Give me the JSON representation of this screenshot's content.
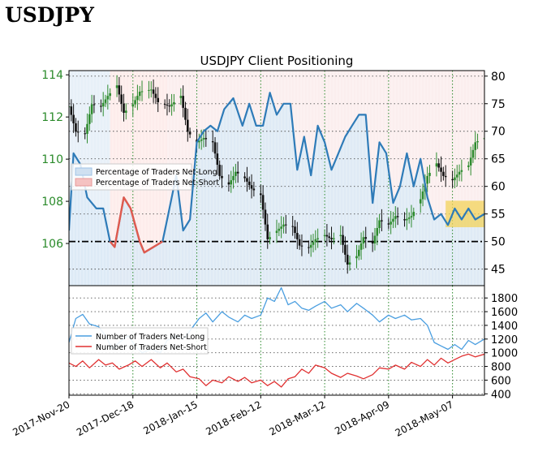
{
  "header": {
    "title": "USDJPY"
  },
  "chart_data": {
    "type": "line",
    "title": "USDJPY Client Positioning",
    "x_tick_labels": [
      "2017-Nov-20",
      "2017-Dec-18",
      "2018-Jan-15",
      "2018-Feb-12",
      "2018-Mar-12",
      "2018-Apr-09",
      "2018-May-07"
    ],
    "x_range": [
      "2017-11-20",
      "2018-05-21"
    ],
    "top_panel": {
      "left_axis": {
        "ticks": [
          106,
          108,
          110,
          112,
          114
        ],
        "ylim": [
          104.0,
          114.2
        ]
      },
      "right_axis": {
        "ticks": [
          45,
          50,
          55,
          60,
          65,
          70,
          75,
          80
        ],
        "ylim": [
          42,
          81
        ]
      },
      "reference_line": 50,
      "highlighted_value": 55,
      "legend": {
        "placement": "center-left",
        "entries": [
          "Percentage of Traders Net-Long",
          "Percentage of Traders Net-Short"
        ]
      },
      "price_series": {
        "axis": "left",
        "type": "candlestick",
        "approx_path": [
          [
            "2017-11-20",
            112.5
          ],
          [
            "2017-11-23",
            111.3
          ],
          [
            "2017-11-27",
            111.2
          ],
          [
            "2017-11-30",
            112.6
          ],
          [
            "2017-12-04",
            112.5
          ],
          [
            "2017-12-07",
            113.0
          ],
          [
            "2017-12-11",
            113.5
          ],
          [
            "2017-12-14",
            112.2
          ],
          [
            "2017-12-18",
            112.6
          ],
          [
            "2017-12-21",
            113.2
          ],
          [
            "2017-12-26",
            113.3
          ],
          [
            "2017-12-29",
            112.7
          ],
          [
            "2018-01-03",
            112.5
          ],
          [
            "2018-01-08",
            113.0
          ],
          [
            "2018-01-11",
            111.3
          ],
          [
            "2018-01-15",
            110.8
          ],
          [
            "2018-01-18",
            111.0
          ],
          [
            "2018-01-22",
            110.8
          ],
          [
            "2018-01-25",
            109.2
          ],
          [
            "2018-01-29",
            108.8
          ],
          [
            "2018-02-01",
            109.4
          ],
          [
            "2018-02-05",
            109.1
          ],
          [
            "2018-02-08",
            108.6
          ],
          [
            "2018-02-12",
            108.3
          ],
          [
            "2018-02-15",
            106.2
          ],
          [
            "2018-02-19",
            106.6
          ],
          [
            "2018-02-22",
            106.9
          ],
          [
            "2018-02-26",
            106.8
          ],
          [
            "2018-03-01",
            105.9
          ],
          [
            "2018-03-05",
            105.8
          ],
          [
            "2018-03-08",
            106.2
          ],
          [
            "2018-03-12",
            106.4
          ],
          [
            "2018-03-15",
            106.2
          ],
          [
            "2018-03-19",
            106.4
          ],
          [
            "2018-03-22",
            105.0
          ],
          [
            "2018-03-26",
            105.4
          ],
          [
            "2018-03-29",
            106.3
          ],
          [
            "2018-04-02",
            106.0
          ],
          [
            "2018-04-05",
            107.1
          ],
          [
            "2018-04-09",
            106.9
          ],
          [
            "2018-04-12",
            107.3
          ],
          [
            "2018-04-16",
            107.1
          ],
          [
            "2018-04-19",
            107.3
          ],
          [
            "2018-04-23",
            108.1
          ],
          [
            "2018-04-26",
            109.2
          ],
          [
            "2018-04-30",
            109.8
          ],
          [
            "2018-05-03",
            109.2
          ],
          [
            "2018-05-07",
            109.0
          ],
          [
            "2018-05-10",
            109.4
          ],
          [
            "2018-05-14",
            109.7
          ],
          [
            "2018-05-17",
            110.8
          ],
          [
            "2018-05-21",
            111.0
          ]
        ]
      },
      "series": [
        {
          "name": "Percentage of Traders Net-Long",
          "axis": "right",
          "color": "#2e7bb8",
          "points": [
            [
              "2017-11-20",
              52
            ],
            [
              "2017-11-22",
              66
            ],
            [
              "2017-11-25",
              64
            ],
            [
              "2017-11-28",
              58
            ],
            [
              "2017-12-02",
              56
            ],
            [
              "2017-12-05",
              56
            ],
            [
              "2017-12-08",
              50
            ],
            [
              "2017-12-10",
              49
            ],
            [
              "2017-12-14",
              58
            ],
            [
              "2017-12-17",
              56
            ],
            [
              "2017-12-21",
              50
            ],
            [
              "2017-12-23",
              48
            ],
            [
              "2017-12-27",
              49
            ],
            [
              "2017-12-31",
              50
            ],
            [
              "2018-01-02",
              54
            ],
            [
              "2018-01-06",
              62
            ],
            [
              "2018-01-09",
              52
            ],
            [
              "2018-01-12",
              54
            ],
            [
              "2018-01-15",
              68
            ],
            [
              "2018-01-18",
              70
            ],
            [
              "2018-01-21",
              71
            ],
            [
              "2018-01-24",
              70
            ],
            [
              "2018-01-27",
              74
            ],
            [
              "2018-01-31",
              76
            ],
            [
              "2018-02-04",
              71
            ],
            [
              "2018-02-07",
              75
            ],
            [
              "2018-02-10",
              71
            ],
            [
              "2018-02-13",
              71
            ],
            [
              "2018-02-16",
              77
            ],
            [
              "2018-02-19",
              73
            ],
            [
              "2018-02-22",
              75
            ],
            [
              "2018-02-25",
              75
            ],
            [
              "2018-02-28",
              63
            ],
            [
              "2018-03-03",
              69
            ],
            [
              "2018-03-06",
              62
            ],
            [
              "2018-03-09",
              71
            ],
            [
              "2018-03-12",
              68
            ],
            [
              "2018-03-15",
              63
            ],
            [
              "2018-03-18",
              66
            ],
            [
              "2018-03-21",
              69
            ],
            [
              "2018-03-24",
              71
            ],
            [
              "2018-03-27",
              73
            ],
            [
              "2018-03-30",
              73
            ],
            [
              "2018-04-02",
              57
            ],
            [
              "2018-04-05",
              68
            ],
            [
              "2018-04-08",
              66
            ],
            [
              "2018-04-11",
              57
            ],
            [
              "2018-04-14",
              60
            ],
            [
              "2018-04-17",
              66
            ],
            [
              "2018-04-20",
              60
            ],
            [
              "2018-04-23",
              65
            ],
            [
              "2018-04-26",
              58
            ],
            [
              "2018-04-29",
              54
            ],
            [
              "2018-05-02",
              55
            ],
            [
              "2018-05-05",
              53
            ],
            [
              "2018-05-08",
              56
            ],
            [
              "2018-05-11",
              54
            ],
            [
              "2018-05-14",
              56
            ],
            [
              "2018-05-17",
              54
            ],
            [
              "2018-05-21",
              55
            ]
          ]
        },
        {
          "name": "Percentage of Traders Net-Short",
          "axis": "right",
          "color": "#e05a4e",
          "points": [
            [
              "2017-12-08",
              50
            ],
            [
              "2017-12-10",
              49
            ],
            [
              "2017-12-14",
              58
            ],
            [
              "2017-12-17",
              56
            ],
            [
              "2017-12-21",
              50
            ],
            [
              "2017-12-23",
              48
            ],
            [
              "2017-12-27",
              49
            ],
            [
              "2017-12-31",
              50
            ]
          ]
        }
      ]
    },
    "bottom_panel": {
      "right_axis": {
        "ticks": [
          400,
          600,
          800,
          1000,
          1200,
          1400,
          1600,
          1800
        ],
        "ylim": [
          380,
          1980
        ]
      },
      "legend": {
        "placement": "upper-left",
        "entries": [
          "Number of Traders Net-Long",
          "Number of Traders Net-Short"
        ]
      },
      "series": [
        {
          "name": "Number of Traders Net-Long",
          "color": "#4a9ee0",
          "points": [
            [
              "2017-11-20",
              1150
            ],
            [
              "2017-11-23",
              1500
            ],
            [
              "2017-11-26",
              1560
            ],
            [
              "2017-11-29",
              1420
            ],
            [
              "2017-12-03",
              1380
            ],
            [
              "2017-12-06",
              1250
            ],
            [
              "2017-12-09",
              1050
            ],
            [
              "2017-12-12",
              1150
            ],
            [
              "2017-12-16",
              1250
            ],
            [
              "2017-12-19",
              1100
            ],
            [
              "2017-12-22",
              1000
            ],
            [
              "2017-12-26",
              1050
            ],
            [
              "2017-12-30",
              1000
            ],
            [
              "2018-01-02",
              1180
            ],
            [
              "2018-01-06",
              1250
            ],
            [
              "2018-01-09",
              1200
            ],
            [
              "2018-01-12",
              1320
            ],
            [
              "2018-01-16",
              1500
            ],
            [
              "2018-01-19",
              1580
            ],
            [
              "2018-01-22",
              1450
            ],
            [
              "2018-01-26",
              1600
            ],
            [
              "2018-01-29",
              1520
            ],
            [
              "2018-02-02",
              1450
            ],
            [
              "2018-02-05",
              1550
            ],
            [
              "2018-02-08",
              1500
            ],
            [
              "2018-02-12",
              1550
            ],
            [
              "2018-02-15",
              1800
            ],
            [
              "2018-02-18",
              1750
            ],
            [
              "2018-02-21",
              1950
            ],
            [
              "2018-02-24",
              1700
            ],
            [
              "2018-02-27",
              1750
            ],
            [
              "2018-03-02",
              1650
            ],
            [
              "2018-03-05",
              1620
            ],
            [
              "2018-03-08",
              1680
            ],
            [
              "2018-03-12",
              1750
            ],
            [
              "2018-03-15",
              1650
            ],
            [
              "2018-03-19",
              1700
            ],
            [
              "2018-03-22",
              1600
            ],
            [
              "2018-03-26",
              1720
            ],
            [
              "2018-03-29",
              1650
            ],
            [
              "2018-04-02",
              1550
            ],
            [
              "2018-04-05",
              1450
            ],
            [
              "2018-04-09",
              1550
            ],
            [
              "2018-04-12",
              1500
            ],
            [
              "2018-04-16",
              1550
            ],
            [
              "2018-04-19",
              1480
            ],
            [
              "2018-04-23",
              1500
            ],
            [
              "2018-04-26",
              1400
            ],
            [
              "2018-04-29",
              1150
            ],
            [
              "2018-05-02",
              1100
            ],
            [
              "2018-05-05",
              1050
            ],
            [
              "2018-05-08",
              1120
            ],
            [
              "2018-05-11",
              1050
            ],
            [
              "2018-05-14",
              1180
            ],
            [
              "2018-05-17",
              1120
            ],
            [
              "2018-05-21",
              1200
            ]
          ]
        },
        {
          "name": "Number of Traders Net-Short",
          "color": "#e03030",
          "points": [
            [
              "2017-11-20",
              850
            ],
            [
              "2017-11-23",
              800
            ],
            [
              "2017-11-26",
              880
            ],
            [
              "2017-11-29",
              780
            ],
            [
              "2017-12-03",
              900
            ],
            [
              "2017-12-06",
              820
            ],
            [
              "2017-12-09",
              850
            ],
            [
              "2017-12-12",
              760
            ],
            [
              "2017-12-16",
              820
            ],
            [
              "2017-12-19",
              880
            ],
            [
              "2017-12-22",
              800
            ],
            [
              "2017-12-26",
              900
            ],
            [
              "2017-12-30",
              780
            ],
            [
              "2018-01-02",
              850
            ],
            [
              "2018-01-06",
              720
            ],
            [
              "2018-01-09",
              760
            ],
            [
              "2018-01-12",
              650
            ],
            [
              "2018-01-16",
              620
            ],
            [
              "2018-01-19",
              520
            ],
            [
              "2018-01-22",
              600
            ],
            [
              "2018-01-26",
              560
            ],
            [
              "2018-01-29",
              650
            ],
            [
              "2018-02-02",
              580
            ],
            [
              "2018-02-05",
              640
            ],
            [
              "2018-02-08",
              560
            ],
            [
              "2018-02-12",
              600
            ],
            [
              "2018-02-15",
              520
            ],
            [
              "2018-02-18",
              580
            ],
            [
              "2018-02-21",
              500
            ],
            [
              "2018-02-24",
              620
            ],
            [
              "2018-02-27",
              650
            ],
            [
              "2018-03-02",
              760
            ],
            [
              "2018-03-05",
              700
            ],
            [
              "2018-03-08",
              820
            ],
            [
              "2018-03-12",
              780
            ],
            [
              "2018-03-15",
              700
            ],
            [
              "2018-03-19",
              640
            ],
            [
              "2018-03-22",
              700
            ],
            [
              "2018-03-26",
              660
            ],
            [
              "2018-03-29",
              620
            ],
            [
              "2018-04-02",
              680
            ],
            [
              "2018-04-05",
              780
            ],
            [
              "2018-04-09",
              760
            ],
            [
              "2018-04-12",
              820
            ],
            [
              "2018-04-16",
              760
            ],
            [
              "2018-04-19",
              860
            ],
            [
              "2018-04-23",
              800
            ],
            [
              "2018-04-26",
              900
            ],
            [
              "2018-04-29",
              820
            ],
            [
              "2018-05-02",
              920
            ],
            [
              "2018-05-05",
              850
            ],
            [
              "2018-05-08",
              900
            ],
            [
              "2018-05-11",
              950
            ],
            [
              "2018-05-14",
              980
            ],
            [
              "2018-05-17",
              940
            ],
            [
              "2018-05-21",
              980
            ]
          ]
        }
      ]
    }
  }
}
